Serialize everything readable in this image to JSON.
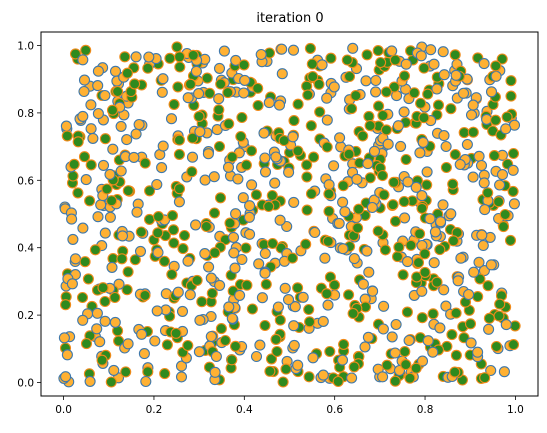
{
  "chart_data": {
    "type": "scatter",
    "title": "iteration 0",
    "xlabel": "",
    "ylabel": "",
    "xlim": [
      -0.05,
      1.05
    ],
    "ylim": [
      -0.04,
      1.04
    ],
    "xticks": [
      "0.0",
      "0.2",
      "0.4",
      "0.6",
      "0.8",
      "1.0"
    ],
    "yticks": [
      "0.0",
      "0.2",
      "0.4",
      "0.6",
      "0.8",
      "1.0"
    ],
    "grid": false,
    "legend": "none",
    "n_points": 1000,
    "point_style": {
      "face_colors": [
        "#ffb133",
        "#2f8a1e"
      ],
      "edge_colors": [
        "#3f78ab",
        "#f08a1a"
      ]
    },
    "note_values": "Points approximately uniformly distributed over [0,1] x [0,1]"
  }
}
